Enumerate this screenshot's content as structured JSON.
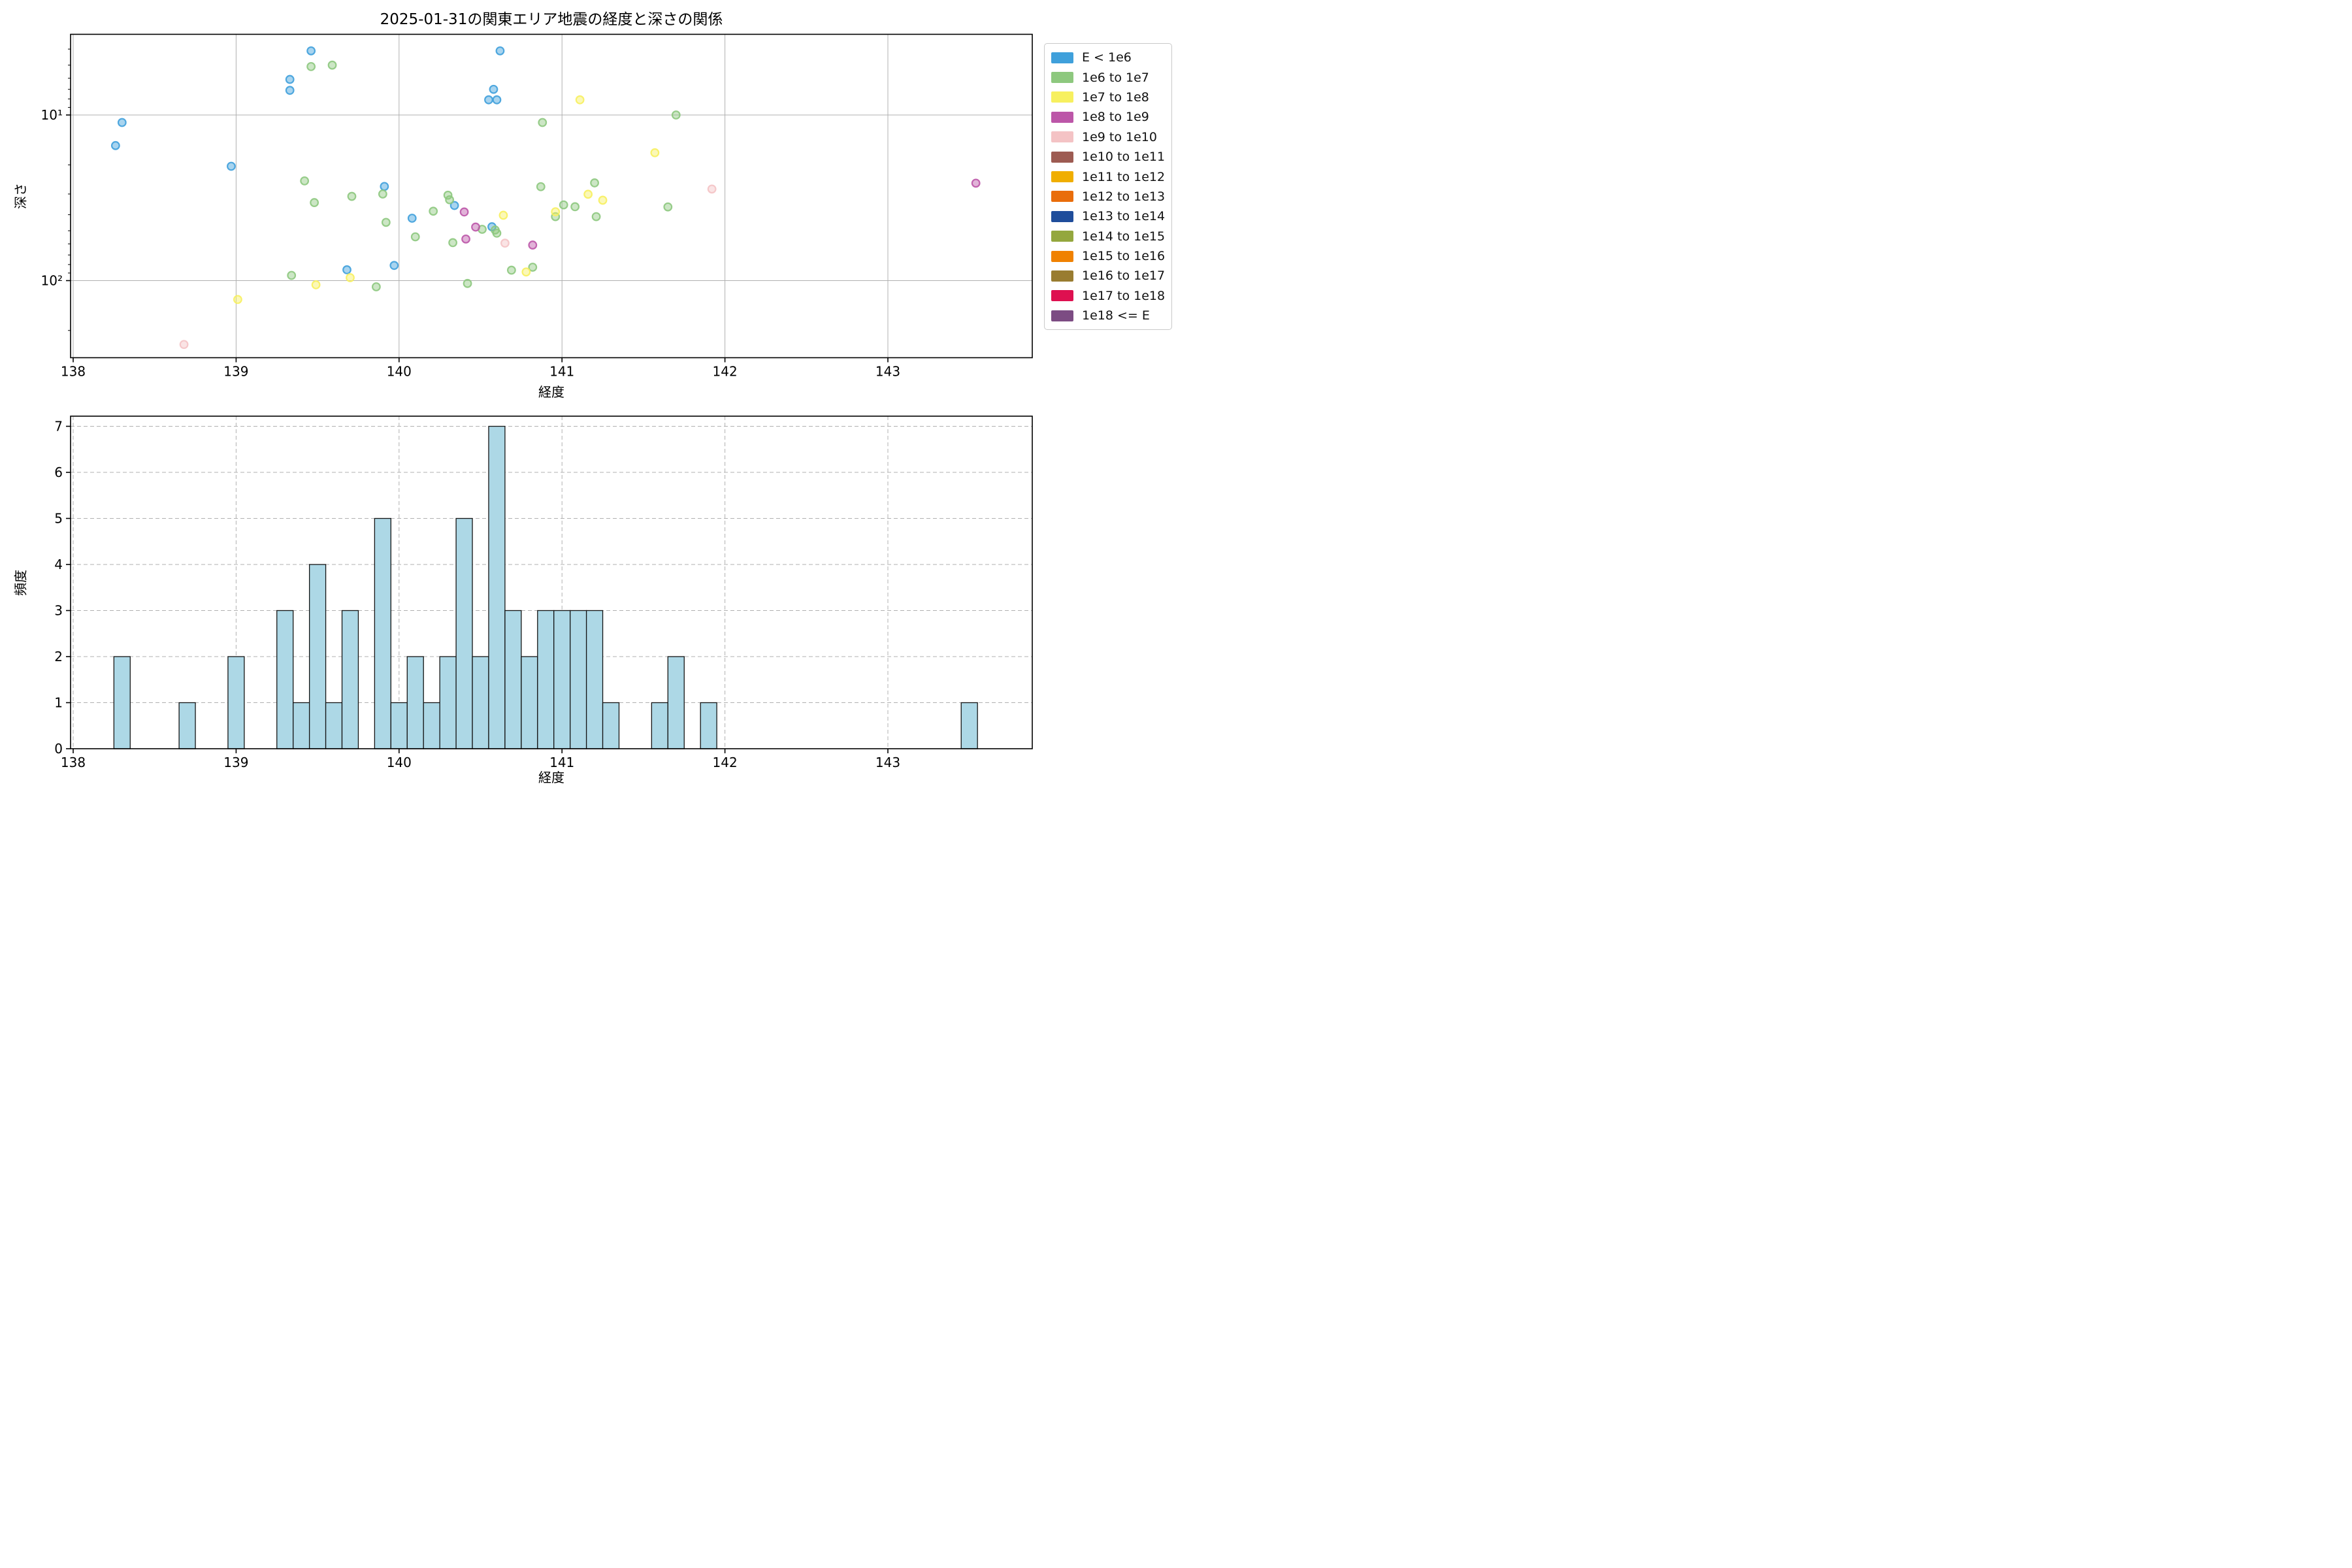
{
  "title": "2025-01-31の関東エリア地震の経度と深さの関係",
  "legend": {
    "entries": [
      {
        "label": "E < 1e6",
        "color": "#3FA0DB"
      },
      {
        "label": "1e6 to 1e7",
        "color": "#8DC87E"
      },
      {
        "label": "1e7 to 1e8",
        "color": "#F7F05F"
      },
      {
        "label": "1e8 to 1e9",
        "color": "#BC56A8"
      },
      {
        "label": "1e9 to 1e10",
        "color": "#F4C3C5"
      },
      {
        "label": "1e10 to 1e11",
        "color": "#9D5B52"
      },
      {
        "label": "1e11 to 1e12",
        "color": "#F0AE00"
      },
      {
        "label": "1e12 to 1e13",
        "color": "#E96D0B"
      },
      {
        "label": "1e13 to 1e14",
        "color": "#1F4D9B"
      },
      {
        "label": "1e14 to 1e15",
        "color": "#94A73E"
      },
      {
        "label": "1e15 to 1e16",
        "color": "#F08100"
      },
      {
        "label": "1e16 to 1e17",
        "color": "#997C30"
      },
      {
        "label": "1e17 to 1e18",
        "color": "#DE1050"
      },
      {
        "label": "1e18 <= E",
        "color": "#7C4C83"
      }
    ]
  },
  "chart_data": [
    {
      "type": "scatter",
      "title": "2025-01-31の関東エリア地震の経度と深さの関係",
      "xlabel": "経度",
      "ylabel": "深さ",
      "xlim": [
        137.98,
        143.89
      ],
      "yscale": "log",
      "y_axis_inverted": true,
      "ylim_depth": [
        3.26,
        292
      ],
      "x_ticks": [
        138,
        139,
        140,
        141,
        142,
        143
      ],
      "y_major_ticks": [
        {
          "label": "10¹",
          "value": 10
        },
        {
          "label": "10²",
          "value": 100
        }
      ],
      "y_minor_ticks": [
        4,
        5,
        6,
        7,
        8,
        9,
        20,
        30,
        40,
        50,
        60,
        70,
        80,
        90,
        200
      ],
      "grid": "solid-major",
      "legend_position": "upper-right-outside",
      "series": [
        {
          "name": "E < 1e6",
          "color": "#3FA0DB",
          "points": [
            [
              138.26,
              15.3
            ],
            [
              138.3,
              11.1
            ],
            [
              138.97,
              20.4
            ],
            [
              139.33,
              6.1
            ],
            [
              139.33,
              7.1
            ],
            [
              139.46,
              4.1
            ],
            [
              139.68,
              86
            ],
            [
              139.91,
              27
            ],
            [
              139.97,
              81
            ],
            [
              140.08,
              42
            ],
            [
              140.34,
              35.2
            ],
            [
              140.55,
              8.1
            ],
            [
              140.57,
              47.3
            ],
            [
              140.58,
              7.0
            ],
            [
              140.6,
              8.1
            ],
            [
              140.62,
              4.1
            ]
          ]
        },
        {
          "name": "1e6 to 1e7",
          "color": "#8DC87E",
          "points": [
            [
              139.34,
              93
            ],
            [
              139.42,
              25
            ],
            [
              139.46,
              5.1
            ],
            [
              139.48,
              33.8
            ],
            [
              139.59,
              5.0
            ],
            [
              139.71,
              31
            ],
            [
              139.86,
              109
            ],
            [
              139.9,
              30
            ],
            [
              139.92,
              44.5
            ],
            [
              140.1,
              54.4
            ],
            [
              140.21,
              38.1
            ],
            [
              140.3,
              30.5
            ],
            [
              140.31,
              32.5
            ],
            [
              140.33,
              59
            ],
            [
              140.42,
              104
            ],
            [
              140.51,
              49
            ],
            [
              140.59,
              49.5
            ],
            [
              140.6,
              51.7
            ],
            [
              140.69,
              86.5
            ],
            [
              140.82,
              83
            ],
            [
              140.87,
              27.1
            ],
            [
              140.88,
              11.1
            ],
            [
              140.96,
              41.1
            ],
            [
              141.01,
              34.9
            ],
            [
              141.08,
              35.8
            ],
            [
              141.2,
              25.7
            ],
            [
              141.21,
              41.1
            ],
            [
              141.65,
              35.9
            ],
            [
              141.7,
              10.0
            ]
          ]
        },
        {
          "name": "1e7 to 1e8",
          "color": "#F7F05F",
          "points": [
            [
              139.01,
              130
            ],
            [
              139.49,
              106
            ],
            [
              139.7,
              96
            ],
            [
              140.64,
              40.3
            ],
            [
              140.78,
              88.7
            ],
            [
              140.96,
              38.4
            ],
            [
              141.11,
              8.1
            ],
            [
              141.16,
              30.1
            ],
            [
              141.25,
              32.7
            ],
            [
              141.57,
              16.9
            ]
          ]
        },
        {
          "name": "1e8 to 1e9",
          "color": "#BC56A8",
          "points": [
            [
              140.4,
              38.5
            ],
            [
              140.41,
              56.1
            ],
            [
              140.47,
              47.5
            ],
            [
              140.82,
              61
            ],
            [
              143.54,
              25.8
            ]
          ]
        },
        {
          "name": "1e9 to 1e10",
          "color": "#F4C3C5",
          "points": [
            [
              138.68,
              243
            ],
            [
              140.65,
              59.4
            ],
            [
              141.92,
              28
            ]
          ]
        }
      ]
    },
    {
      "type": "bar",
      "xlabel": "経度",
      "ylabel": "頻度",
      "xlim": [
        137.98,
        143.89
      ],
      "ylim": [
        0,
        7.15
      ],
      "x_ticks": [
        138,
        139,
        140,
        141,
        142,
        143
      ],
      "y_ticks": [
        0,
        1,
        2,
        3,
        4,
        5,
        6,
        7
      ],
      "grid": "dashed-both",
      "bar_color": "#ADD8E6",
      "bar_edge_color": "#141414",
      "bin_width": 0.1,
      "bars": [
        {
          "left": 138.25,
          "count": 2
        },
        {
          "left": 138.65,
          "count": 1
        },
        {
          "left": 138.95,
          "count": 2
        },
        {
          "left": 139.25,
          "count": 3
        },
        {
          "left": 139.35,
          "count": 1
        },
        {
          "left": 139.45,
          "count": 4
        },
        {
          "left": 139.55,
          "count": 1
        },
        {
          "left": 139.65,
          "count": 3
        },
        {
          "left": 139.85,
          "count": 5
        },
        {
          "left": 139.95,
          "count": 1
        },
        {
          "left": 140.05,
          "count": 2
        },
        {
          "left": 140.15,
          "count": 1
        },
        {
          "left": 140.25,
          "count": 2
        },
        {
          "left": 140.35,
          "count": 5
        },
        {
          "left": 140.45,
          "count": 2
        },
        {
          "left": 140.55,
          "count": 7
        },
        {
          "left": 140.65,
          "count": 3
        },
        {
          "left": 140.75,
          "count": 2
        },
        {
          "left": 140.85,
          "count": 3
        },
        {
          "left": 140.95,
          "count": 3
        },
        {
          "left": 141.05,
          "count": 3
        },
        {
          "left": 141.15,
          "count": 3
        },
        {
          "left": 141.25,
          "count": 1
        },
        {
          "left": 141.55,
          "count": 1
        },
        {
          "left": 141.65,
          "count": 2
        },
        {
          "left": 141.85,
          "count": 1
        },
        {
          "left": 143.45,
          "count": 1
        }
      ]
    }
  ],
  "style": {
    "grid_color": "#b0b0b0",
    "spine_color": "#000000",
    "text_color": "#000000",
    "marker_fill_opacity": 0.45,
    "marker_edge_opacity": 0.9
  }
}
